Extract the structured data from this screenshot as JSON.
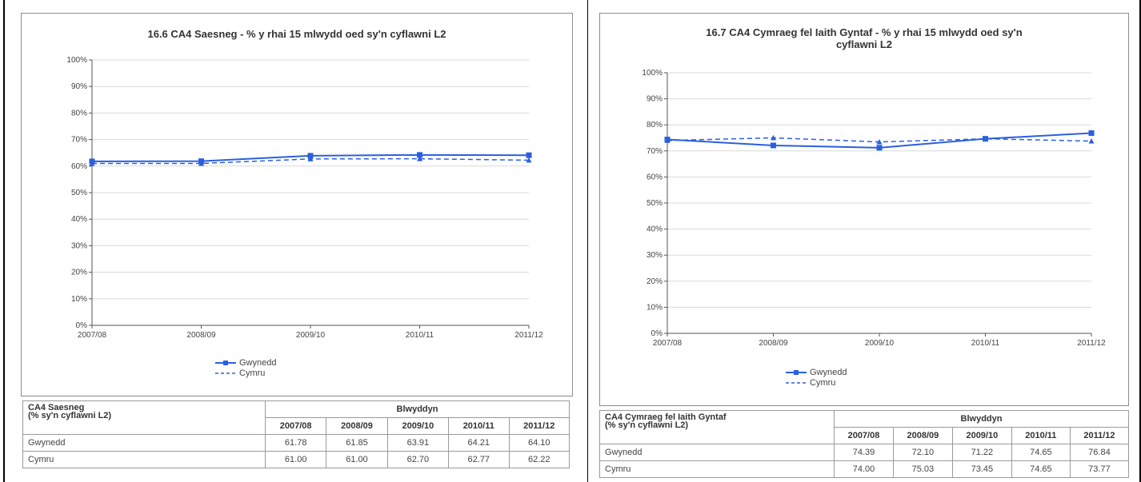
{
  "chart_data": [
    {
      "type": "line",
      "title": "16.6  CA4 Saesneg - % y rhai 15 mlwydd oed sy'n cyflawni L2",
      "categories": [
        "2007/08",
        "2008/09",
        "2009/10",
        "2010/11",
        "2011/12"
      ],
      "y_ticks": [
        "0%",
        "10%",
        "20%",
        "30%",
        "40%",
        "50%",
        "60%",
        "70%",
        "80%",
        "90%",
        "100%"
      ],
      "ylim": [
        0,
        100
      ],
      "grid": true,
      "legend_position": "bottom",
      "series": [
        {
          "name": "Gwynedd",
          "values": [
            61.78,
            61.85,
            63.91,
            64.21,
            64.1
          ],
          "color": "#2a5fe0",
          "dash": "solid",
          "marker": "square"
        },
        {
          "name": "Cymru",
          "values": [
            61.0,
            61.0,
            62.7,
            62.77,
            62.22
          ],
          "color": "#2a5fe0",
          "dash": "dashed",
          "marker": "triangle"
        }
      ],
      "table": {
        "row_header": [
          "CA4 Saesneg",
          "(% sy'n cyflawni L2)"
        ],
        "group_header": "Blwyddyn",
        "years": [
          "2007/08",
          "2008/09",
          "2009/10",
          "2010/11",
          "2011/12"
        ],
        "rows": [
          {
            "label": "Gwynedd",
            "values": [
              "61.78",
              "61.85",
              "63.91",
              "64.21",
              "64.10"
            ]
          },
          {
            "label": "Cymru",
            "values": [
              "61.00",
              "61.00",
              "62.70",
              "62.77",
              "62.22"
            ]
          }
        ]
      }
    },
    {
      "type": "line",
      "title": "16.7  CA4 Cymraeg fel Iaith Gyntaf - % y rhai 15 mlwydd oed sy'n cyflawni L2",
      "title_lines": [
        "16.7  CA4 Cymraeg fel Iaith Gyntaf - % y rhai 15 mlwydd oed sy'n",
        "cyflawni L2"
      ],
      "categories": [
        "2007/08",
        "2008/09",
        "2009/10",
        "2010/11",
        "2011/12"
      ],
      "y_ticks": [
        "0%",
        "10%",
        "20%",
        "30%",
        "40%",
        "50%",
        "60%",
        "70%",
        "80%",
        "90%",
        "100%"
      ],
      "ylim": [
        0,
        100
      ],
      "grid": true,
      "legend_position": "bottom",
      "series": [
        {
          "name": "Gwynedd",
          "values": [
            74.39,
            72.1,
            71.22,
            74.65,
            76.84
          ],
          "color": "#2a5fe0",
          "dash": "solid",
          "marker": "square"
        },
        {
          "name": "Cymru",
          "values": [
            74.0,
            75.03,
            73.45,
            74.65,
            73.77
          ],
          "color": "#2a5fe0",
          "dash": "dashed",
          "marker": "triangle"
        }
      ],
      "table": {
        "row_header": [
          "CA4 Cymraeg fel Iaith Gyntaf",
          "(% sy'n cyflawni L2)"
        ],
        "group_header": "Blwyddyn",
        "years": [
          "2007/08",
          "2008/09",
          "2009/10",
          "2010/11",
          "2011/12"
        ],
        "rows": [
          {
            "label": "Gwynedd",
            "values": [
              "74.39",
              "72.10",
              "71.22",
              "74.65",
              "76.84"
            ]
          },
          {
            "label": "Cymru",
            "values": [
              "74.00",
              "75.03",
              "73.45",
              "74.65",
              "73.77"
            ]
          }
        ]
      }
    }
  ]
}
